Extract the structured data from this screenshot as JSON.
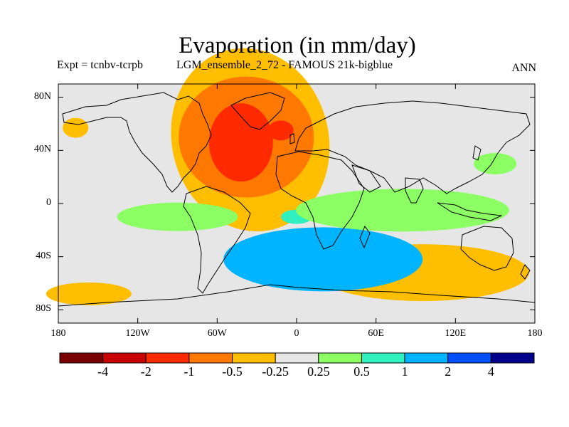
{
  "chart_data": {
    "type": "heatmap",
    "title": "Evaporation (in mm/day)",
    "left_label": "Expt = tcnbv-tcrpb",
    "center_label": "LGM_ensemble_2_72 - FAMOUS 21k-bigblue",
    "right_label": "ANN",
    "x_range": [
      -180,
      180
    ],
    "y_range": [
      -90,
      90
    ],
    "x_ticks": [
      {
        "value": -180,
        "label": "180"
      },
      {
        "value": -120,
        "label": "120W"
      },
      {
        "value": -60,
        "label": "60W"
      },
      {
        "value": 0,
        "label": "0"
      },
      {
        "value": 60,
        "label": "60E"
      },
      {
        "value": 120,
        "label": "120E"
      },
      {
        "value": 180,
        "label": "180"
      }
    ],
    "y_ticks": [
      {
        "value": 80,
        "label": "80N"
      },
      {
        "value": 40,
        "label": "40N"
      },
      {
        "value": 0,
        "label": "0"
      },
      {
        "value": -40,
        "label": "40S"
      },
      {
        "value": -80,
        "label": "80S"
      }
    ],
    "colorbar": {
      "levels": [
        "-4",
        "-2",
        "-1",
        "-0.5",
        "-0.25",
        "0.25",
        "0.5",
        "1",
        "2",
        "4"
      ],
      "colors": [
        "#7a0000",
        "#c80000",
        "#ff2a00",
        "#ff7800",
        "#ffbe00",
        "#e6e6e6",
        "#8cff64",
        "#30f0c0",
        "#00b4ff",
        "#0050ff",
        "#00008c"
      ]
    },
    "regions": [
      {
        "level": "-0.25 to -0.5",
        "color": "#ffbe00",
        "center": [
          -35,
          48
        ],
        "note": "North Atlantic broad decrease"
      },
      {
        "level": "-0.5 to -1",
        "color": "#ff7800",
        "center": [
          -38,
          50
        ]
      },
      {
        "level": "-1 to -2",
        "color": "#ff2a00",
        "center": [
          -42,
          46
        ]
      },
      {
        "level": "-1 to -2",
        "color": "#ff2a00",
        "center": [
          -12,
          55
        ]
      },
      {
        "level": "-0.25 to -0.5",
        "color": "#ffbe00",
        "center": [
          -167,
          57
        ]
      },
      {
        "level": "-0.25 to -0.5",
        "color": "#ffbe00",
        "center": [
          -157,
          -68
        ]
      },
      {
        "level": "-0.5 to -1",
        "color": "#ff7800",
        "center": [
          95,
          -54
        ]
      },
      {
        "level": "-0.25 to -0.5",
        "color": "#ffbe00",
        "center": [
          95,
          -52
        ]
      },
      {
        "level": "0.25 to 0.5",
        "color": "#8cff64",
        "center": [
          -90,
          -10
        ],
        "note": "Tropical/southern increases"
      },
      {
        "level": "0.5 to 1",
        "color": "#30f0c0",
        "center": [
          0,
          -10
        ]
      },
      {
        "level": "1 to 2",
        "color": "#00b4ff",
        "center": [
          20,
          -42
        ]
      },
      {
        "level": "0.25 to 0.5",
        "color": "#8cff64",
        "center": [
          80,
          -5
        ]
      },
      {
        "level": "0.25 to 0.5",
        "color": "#8cff64",
        "center": [
          150,
          30
        ]
      }
    ]
  }
}
